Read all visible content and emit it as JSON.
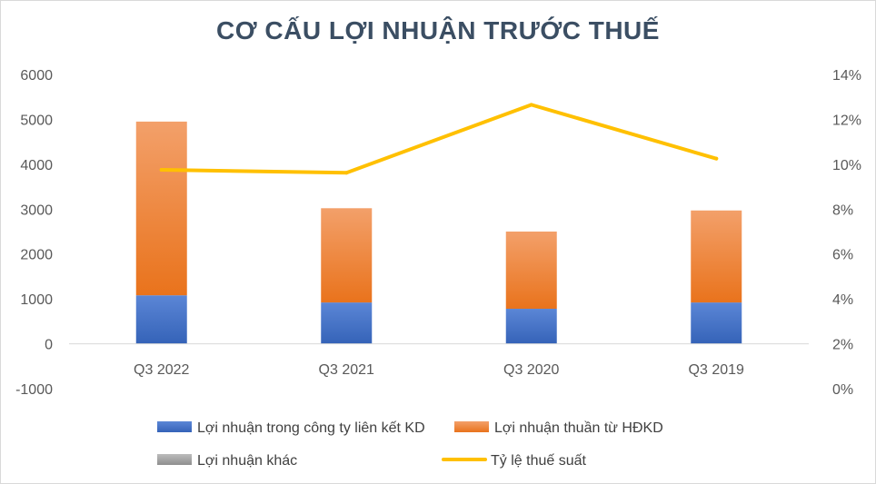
{
  "chart_data": {
    "type": "bar",
    "title": "CƠ CẤU LỢI NHUẬN TRƯỚC THUẾ",
    "categories": [
      "Q3 2022",
      "Q3 2021",
      "Q3 2020",
      "Q3 2019"
    ],
    "stacked": true,
    "series": [
      {
        "name": "Lợi nhuận trong công ty liên kết KD",
        "type": "bar",
        "axis": "left",
        "color": "#4472c4",
        "values": [
          1080,
          920,
          780,
          920
        ]
      },
      {
        "name": "Lợi nhuận thuần từ HĐKD",
        "type": "bar",
        "axis": "left",
        "color": "#ed7d31",
        "values": [
          3870,
          2100,
          1720,
          2050
        ]
      },
      {
        "name": "Lợi nhuận khác",
        "type": "bar",
        "axis": "left",
        "color": "#a5a5a5",
        "values": [
          0,
          0,
          0,
          0
        ]
      },
      {
        "name": "Tỷ lệ thuế suất",
        "type": "line",
        "axis": "right",
        "color": "#ffc000",
        "values": [
          0.0975,
          0.0962,
          0.1265,
          0.1025
        ]
      }
    ],
    "y_left": {
      "min": -1000,
      "max": 6000,
      "step": 1000,
      "tick_labels": [
        "-1000",
        "0",
        "1000",
        "2000",
        "3000",
        "4000",
        "5000",
        "6000"
      ]
    },
    "y_right": {
      "min": 0,
      "max": 0.14,
      "step": 0.02,
      "tick_labels": [
        "0%",
        "2%",
        "4%",
        "6%",
        "8%",
        "10%",
        "12%",
        "14%"
      ]
    },
    "grid": false,
    "legend_position": "bottom"
  }
}
